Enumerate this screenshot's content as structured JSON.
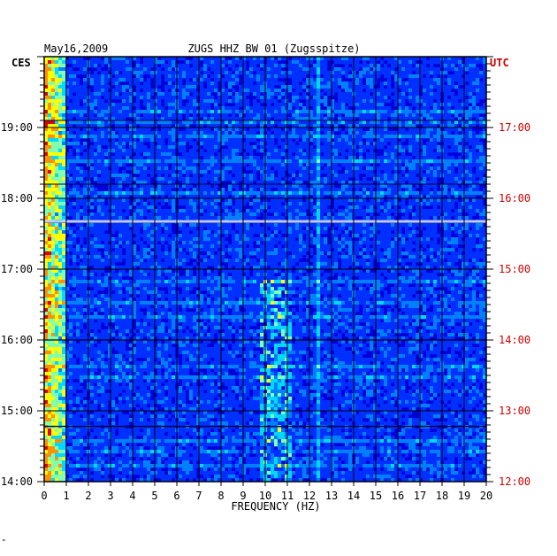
{
  "chart_data": {
    "type": "heatmap",
    "title_date": "May16,2009",
    "title_station": "ZUGS HHZ BW 01 (Zugsspitze)",
    "left_tz_label": "CES",
    "right_tz_label": "UTC",
    "xlabel": "FREQUENCY (HZ)",
    "xlim": [
      0,
      20
    ],
    "x_ticks": [
      "0",
      "1",
      "2",
      "3",
      "4",
      "5",
      "6",
      "7",
      "8",
      "9",
      "10",
      "11",
      "12",
      "13",
      "14",
      "15",
      "16",
      "17",
      "18",
      "19",
      "20"
    ],
    "left_time_ticks": [
      "19:00",
      "18:00",
      "17:00",
      "16:00",
      "15:00",
      "14:00"
    ],
    "right_time_ticks": [
      "17:00",
      "16:00",
      "15:00",
      "14:00",
      "13:00",
      "12:00"
    ],
    "time_range_local": [
      "14:00",
      "19:50"
    ],
    "colormap": [
      "#00007a",
      "#0000d8",
      "#0030ff",
      "#0080ff",
      "#00d8ff",
      "#80ffb0",
      "#ffff00",
      "#ff9000",
      "#e00000"
    ],
    "features": [
      {
        "name": "low-frequency band",
        "freq_range": [
          0,
          1
        ],
        "intensity": "high"
      },
      {
        "name": "persistent line",
        "freq": 12.4,
        "intensity": "medium"
      },
      {
        "name": "tremor band",
        "freq_range": [
          9.8,
          11.2
        ],
        "time_range_local": [
          "14:00",
          "16:50"
        ],
        "intensity": "medium-high"
      }
    ],
    "bottom_mark": "\""
  }
}
